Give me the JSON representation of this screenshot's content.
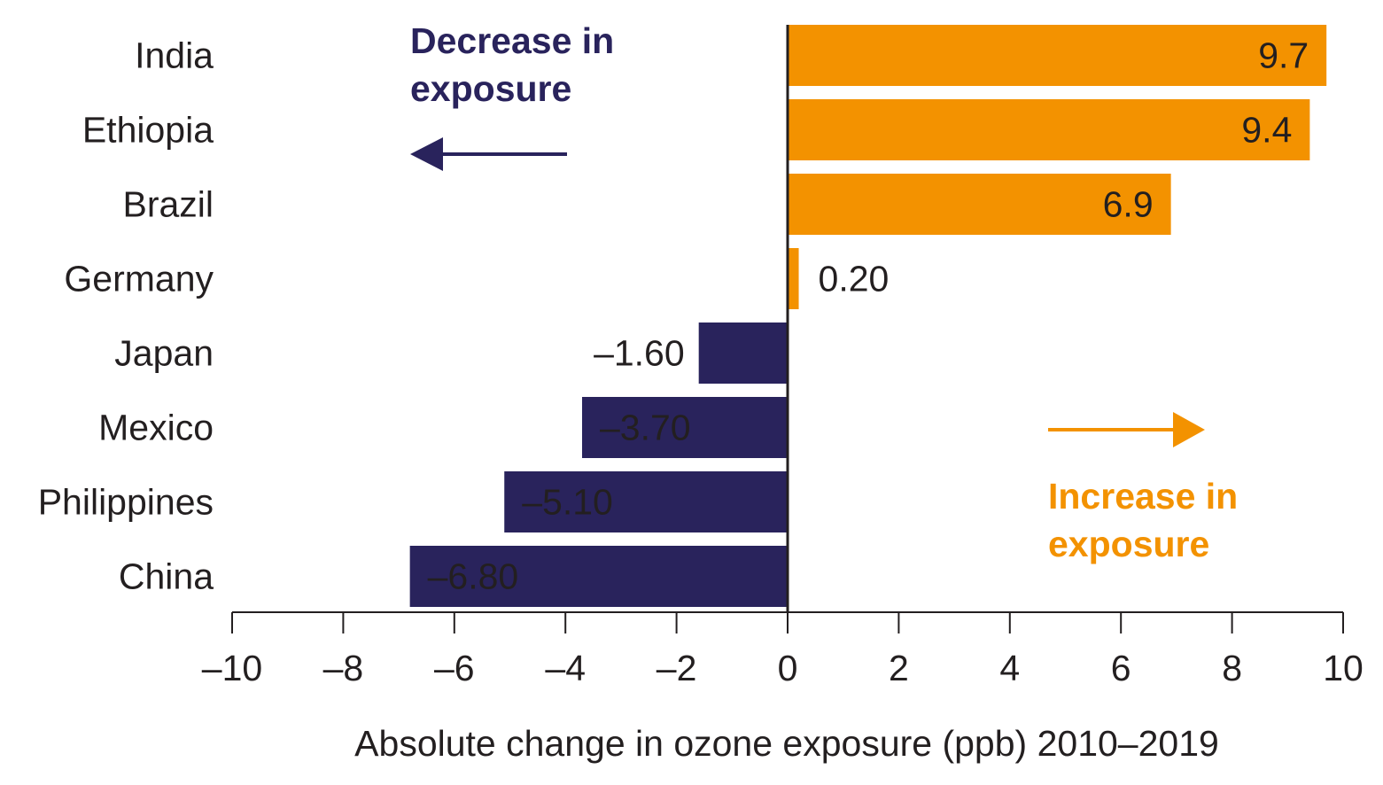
{
  "chart_data": {
    "type": "bar",
    "orientation": "horizontal",
    "categories": [
      "India",
      "Ethiopia",
      "Brazil",
      "Germany",
      "Japan",
      "Mexico",
      "Philippines",
      "China"
    ],
    "values": [
      9.7,
      9.4,
      6.9,
      0.2,
      -1.6,
      -3.7,
      -5.1,
      -6.8
    ],
    "data_labels": [
      "9.7",
      "9.4",
      "6.9",
      "0.20",
      "–1.60",
      "–3.70",
      "–5.10",
      "–6.80"
    ],
    "xlabel": "Absolute change in ozone exposure (ppb) 2010–2019",
    "ylabel": "",
    "xlim": [
      -10,
      10
    ],
    "xticks": [
      -10,
      -8,
      -6,
      -4,
      -2,
      0,
      2,
      4,
      6,
      8,
      10
    ],
    "xtick_labels": [
      "–10",
      "–8",
      "–6",
      "–4",
      "–2",
      "0",
      "2",
      "4",
      "6",
      "8",
      "10"
    ],
    "grid": false,
    "annotations": {
      "decrease": {
        "lines": [
          "Decrease in",
          "exposure"
        ],
        "color": "#29235c",
        "arrow": "left"
      },
      "increase": {
        "lines": [
          "Increase in",
          "exposure"
        ],
        "color": "#f39200",
        "arrow": "right"
      }
    },
    "colors": {
      "positive": "#f39200",
      "negative": "#29235c",
      "axis": "#231f20"
    }
  }
}
